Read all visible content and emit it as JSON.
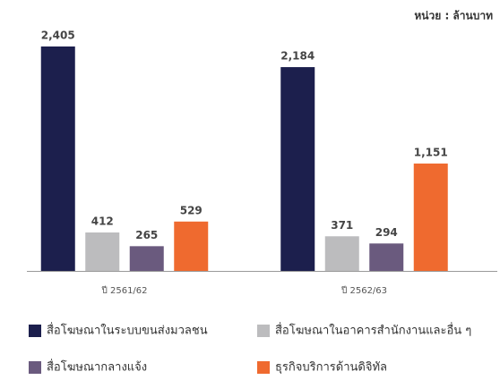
{
  "chart_data": {
    "type": "bar",
    "subtitle": "หน่วย : ล้านบาท",
    "categories": [
      "ปี 2561/62",
      "ปี 2562/63"
    ],
    "series": [
      {
        "name": "สื่อโฆษณาในระบบขนส่งมวลชน",
        "color": "#1c1f4d",
        "values": [
          2405,
          2184
        ],
        "value_labels": [
          "2,405",
          "2,184"
        ]
      },
      {
        "name": "สื่อโฆษณาในอาคารสำนักงานและอื่น ๆ",
        "color": "#bcbcbe",
        "values": [
          412,
          371
        ]
      },
      {
        "name": "สื่อโฆษณากลางแจ้ง",
        "color": "#6a5a7e",
        "values": [
          265,
          294
        ]
      },
      {
        "name": "ธุรกิจบริการด้านดิจิทัล",
        "color": "#ef6a2f",
        "values": [
          529,
          1151
        ],
        "value_labels": [
          "529",
          "1,151"
        ]
      }
    ]
  }
}
